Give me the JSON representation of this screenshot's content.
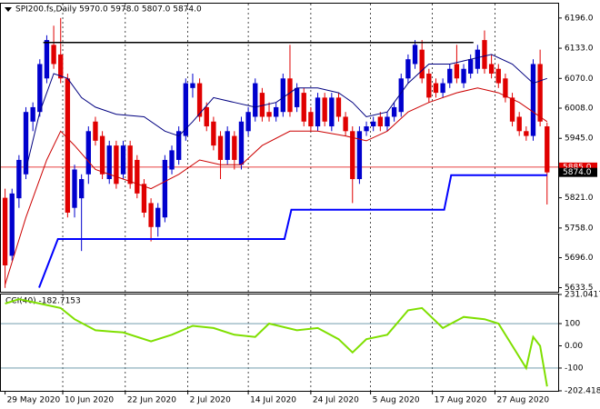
{
  "chart_data": {
    "type": "candlestick",
    "title": "SPI200.fs,Daily  5970.0 5978.0 5807.0 5874.0",
    "candles": {
      "open": [
        5821,
        5700,
        5820,
        5870,
        5980,
        6000,
        6070,
        6140,
        6120,
        6070,
        5800,
        5820,
        5870,
        5980,
        5950,
        5860,
        5930,
        5870,
        5930,
        5900,
        5850,
        5810,
        5760,
        5780,
        5880,
        5900,
        5950,
        6050,
        6060,
        6010,
        5980,
        5950,
        5900,
        5950,
        5890,
        5960,
        5990,
        6040,
        6000,
        5990,
        6000,
        6070,
        6010,
        6040,
        6000,
        5970,
        6030,
        5970,
        6030,
        5990,
        5960,
        5860,
        5960,
        5970,
        5990,
        5970,
        5990,
        6000,
        6070,
        6100,
        6130,
        6080,
        6060,
        6040,
        6060,
        6100,
        6060,
        6080,
        6090,
        6150,
        6100,
        6090,
        6070,
        6030,
        5990,
        5960,
        5950,
        6100,
        5970
      ],
      "high": [
        5840,
        5840,
        5910,
        6010,
        6020,
        6110,
        6160,
        6180,
        6196,
        6080,
        5890,
        5870,
        5970,
        5990,
        5960,
        5940,
        5940,
        5940,
        5940,
        5910,
        5860,
        5820,
        5810,
        5910,
        5930,
        5970,
        6070,
        6080,
        6070,
        6020,
        5990,
        5960,
        5970,
        5960,
        5990,
        6010,
        6070,
        6050,
        6020,
        6020,
        6080,
        6140,
        6060,
        6050,
        6010,
        6040,
        6040,
        6040,
        6040,
        6000,
        5970,
        5970,
        5980,
        5990,
        6000,
        6000,
        6020,
        6080,
        6120,
        6150,
        6150,
        6090,
        6070,
        6070,
        6100,
        6140,
        6100,
        6120,
        6140,
        6170,
        6120,
        6100,
        6080,
        6040,
        6000,
        5970,
        6110,
        6130,
        5978
      ],
      "low": [
        5633,
        5690,
        5800,
        5860,
        5960,
        5990,
        6060,
        6090,
        6060,
        5780,
        5780,
        5710,
        5850,
        5930,
        5860,
        5850,
        5840,
        5860,
        5840,
        5820,
        5780,
        5730,
        5740,
        5770,
        5870,
        5890,
        5940,
        6030,
        5980,
        5960,
        5920,
        5860,
        5890,
        5880,
        5880,
        5950,
        5980,
        5980,
        5980,
        5980,
        5990,
        5990,
        6000,
        5970,
        5960,
        5960,
        5970,
        5960,
        5980,
        5950,
        5810,
        5850,
        5950,
        5960,
        5960,
        5960,
        5980,
        5990,
        6060,
        6090,
        6060,
        6020,
        6030,
        6030,
        6050,
        6060,
        6050,
        6070,
        6080,
        6080,
        6070,
        6050,
        6020,
        5970,
        5950,
        5940,
        5940,
        5970,
        5807
      ],
      "close": [
        5680,
        5830,
        5900,
        6000,
        6010,
        6100,
        6150,
        6100,
        6070,
        5790,
        5880,
        5860,
        5960,
        5940,
        5870,
        5930,
        5850,
        5930,
        5850,
        5830,
        5790,
        5760,
        5800,
        5900,
        5920,
        5960,
        6060,
        6060,
        5990,
        5970,
        5930,
        5900,
        5960,
        5900,
        5980,
        6000,
        6060,
        5990,
        5990,
        6010,
        6070,
        6000,
        6050,
        5980,
        5970,
        6030,
        5980,
        6030,
        5990,
        5960,
        5860,
        5960,
        5970,
        5980,
        5970,
        5990,
        6010,
        6070,
        6110,
        6140,
        6070,
        6030,
        6040,
        6060,
        6090,
        6070,
        6090,
        6110,
        6130,
        6090,
        6080,
        6060,
        6030,
        5980,
        5960,
        5950,
        6100,
        5980,
        5874
      ]
    },
    "bull_color": "#0000cd",
    "bear_color": "#e00000",
    "lines": [
      {
        "color": "#000080",
        "width": 1,
        "x": [
          3,
          5,
          7,
          9,
          11,
          13,
          16,
          20,
          23,
          25,
          27,
          30,
          33,
          36,
          39,
          42,
          45,
          48,
          50,
          52,
          55,
          58,
          61,
          64,
          67,
          70,
          73,
          76,
          78
        ],
        "values": [
          5880,
          6000,
          6080,
          6070,
          6030,
          6010,
          5995,
          5990,
          5960,
          5950,
          5980,
          6030,
          6020,
          6010,
          6020,
          6050,
          6050,
          6040,
          6020,
          5990,
          6000,
          6060,
          6100,
          6100,
          6110,
          6120,
          6100,
          6060,
          6070
        ]
      },
      {
        "color": "#cc0000",
        "width": 1,
        "x": [
          0,
          3,
          6,
          8,
          10,
          13,
          17,
          21,
          25,
          28,
          31,
          34,
          37,
          41,
          45,
          49,
          52,
          55,
          58,
          61,
          65,
          68,
          71,
          74,
          77,
          78
        ],
        "values": [
          5640,
          5780,
          5900,
          5960,
          5930,
          5880,
          5860,
          5840,
          5870,
          5900,
          5890,
          5890,
          5930,
          5960,
          5960,
          5950,
          5940,
          5960,
          6000,
          6020,
          6040,
          6050,
          6040,
          6020,
          5990,
          5980
        ]
      },
      {
        "color": "#0000ff",
        "width": 2,
        "x": [
          4.9,
          7.6,
          40.2,
          41.2,
          63.2,
          64.2,
          78
        ],
        "values": [
          5633.5,
          5735,
          5735,
          5796,
          5796,
          5868,
          5868
        ]
      },
      {
        "color": "#000000",
        "width": 1.5,
        "x": [
          5.5,
          67.4
        ],
        "values": [
          6145,
          6145
        ]
      }
    ],
    "ylim": [
      5625,
      6226
    ],
    "yticks": [
      {
        "value": 6196,
        "label": "6196.0"
      },
      {
        "value": 6133,
        "label": "6133.0"
      },
      {
        "value": 6070,
        "label": "6070.0"
      },
      {
        "value": 6008,
        "label": "6008.0"
      },
      {
        "value": 5945,
        "label": "5945.0"
      },
      {
        "value": 5821,
        "label": "5821.0"
      },
      {
        "value": 5758,
        "label": "5758.0"
      },
      {
        "value": 5696,
        "label": "5696.0"
      },
      {
        "value": 5633.5,
        "label": "5633.5"
      }
    ],
    "price_lines": [
      {
        "value": 5885,
        "label": "5885.0",
        "color": "#e00000"
      },
      {
        "value": 5874,
        "label": "5874.0",
        "color": "#000000"
      }
    ],
    "xlim": [
      -0.6,
      79.6
    ],
    "xticks": [
      {
        "value": 0,
        "label": "29 May 2020"
      },
      {
        "value": 8.3,
        "label": "10 Jun 2020"
      },
      {
        "value": 17.3,
        "label": "22 Jun 2020"
      },
      {
        "value": 26.3,
        "label": "2 Jul 2020"
      },
      {
        "value": 35,
        "label": "14 Jul 2020"
      },
      {
        "value": 44,
        "label": "24 Jul 2020"
      },
      {
        "value": 52.6,
        "label": "5 Aug 2020"
      },
      {
        "value": 61.5,
        "label": "17 Aug 2020"
      },
      {
        "value": 70.5,
        "label": "27 Aug 2020"
      }
    ],
    "indicator": {
      "title": "CCI(40) -182.7153",
      "color": "#7fdf00",
      "x": [
        0,
        2,
        5,
        8,
        10,
        13,
        17,
        21,
        24,
        27,
        30,
        33,
        36,
        38,
        42,
        45,
        48,
        50,
        52,
        55,
        58,
        60,
        63,
        66,
        69,
        71,
        73,
        75,
        76,
        77,
        78
      ],
      "values": [
        190,
        210,
        190,
        170,
        120,
        70,
        60,
        20,
        50,
        90,
        80,
        50,
        40,
        100,
        70,
        80,
        30,
        -30,
        30,
        50,
        160,
        170,
        80,
        130,
        120,
        100,
        0,
        -100,
        40,
        0,
        -182.7153
      ],
      "ylim": [
        -202.418,
        231.0417
      ],
      "yticks": [
        231.0417,
        100,
        {
          "value": 0,
          "label": "0.00"
        },
        -100,
        -202.418
      ],
      "levels": [
        100,
        -100
      ]
    }
  }
}
